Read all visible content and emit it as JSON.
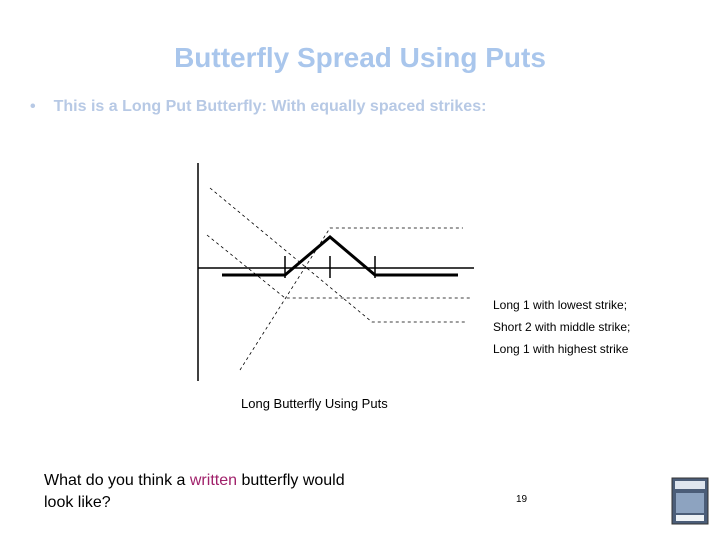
{
  "title": "Butterfly Spread Using Puts",
  "bullet": "This is a Long Put Butterfly: With equally spaced strikes:",
  "legend": [
    "Long 1 with lowest strike;",
    "Short 2 with middle strike;",
    "Long 1 with highest strike"
  ],
  "caption": "Long Butterfly Using Puts",
  "question": {
    "before": "What do you think a",
    "emphasis": "written",
    "after": "butterfly would look like?"
  },
  "page_number": "19"
}
